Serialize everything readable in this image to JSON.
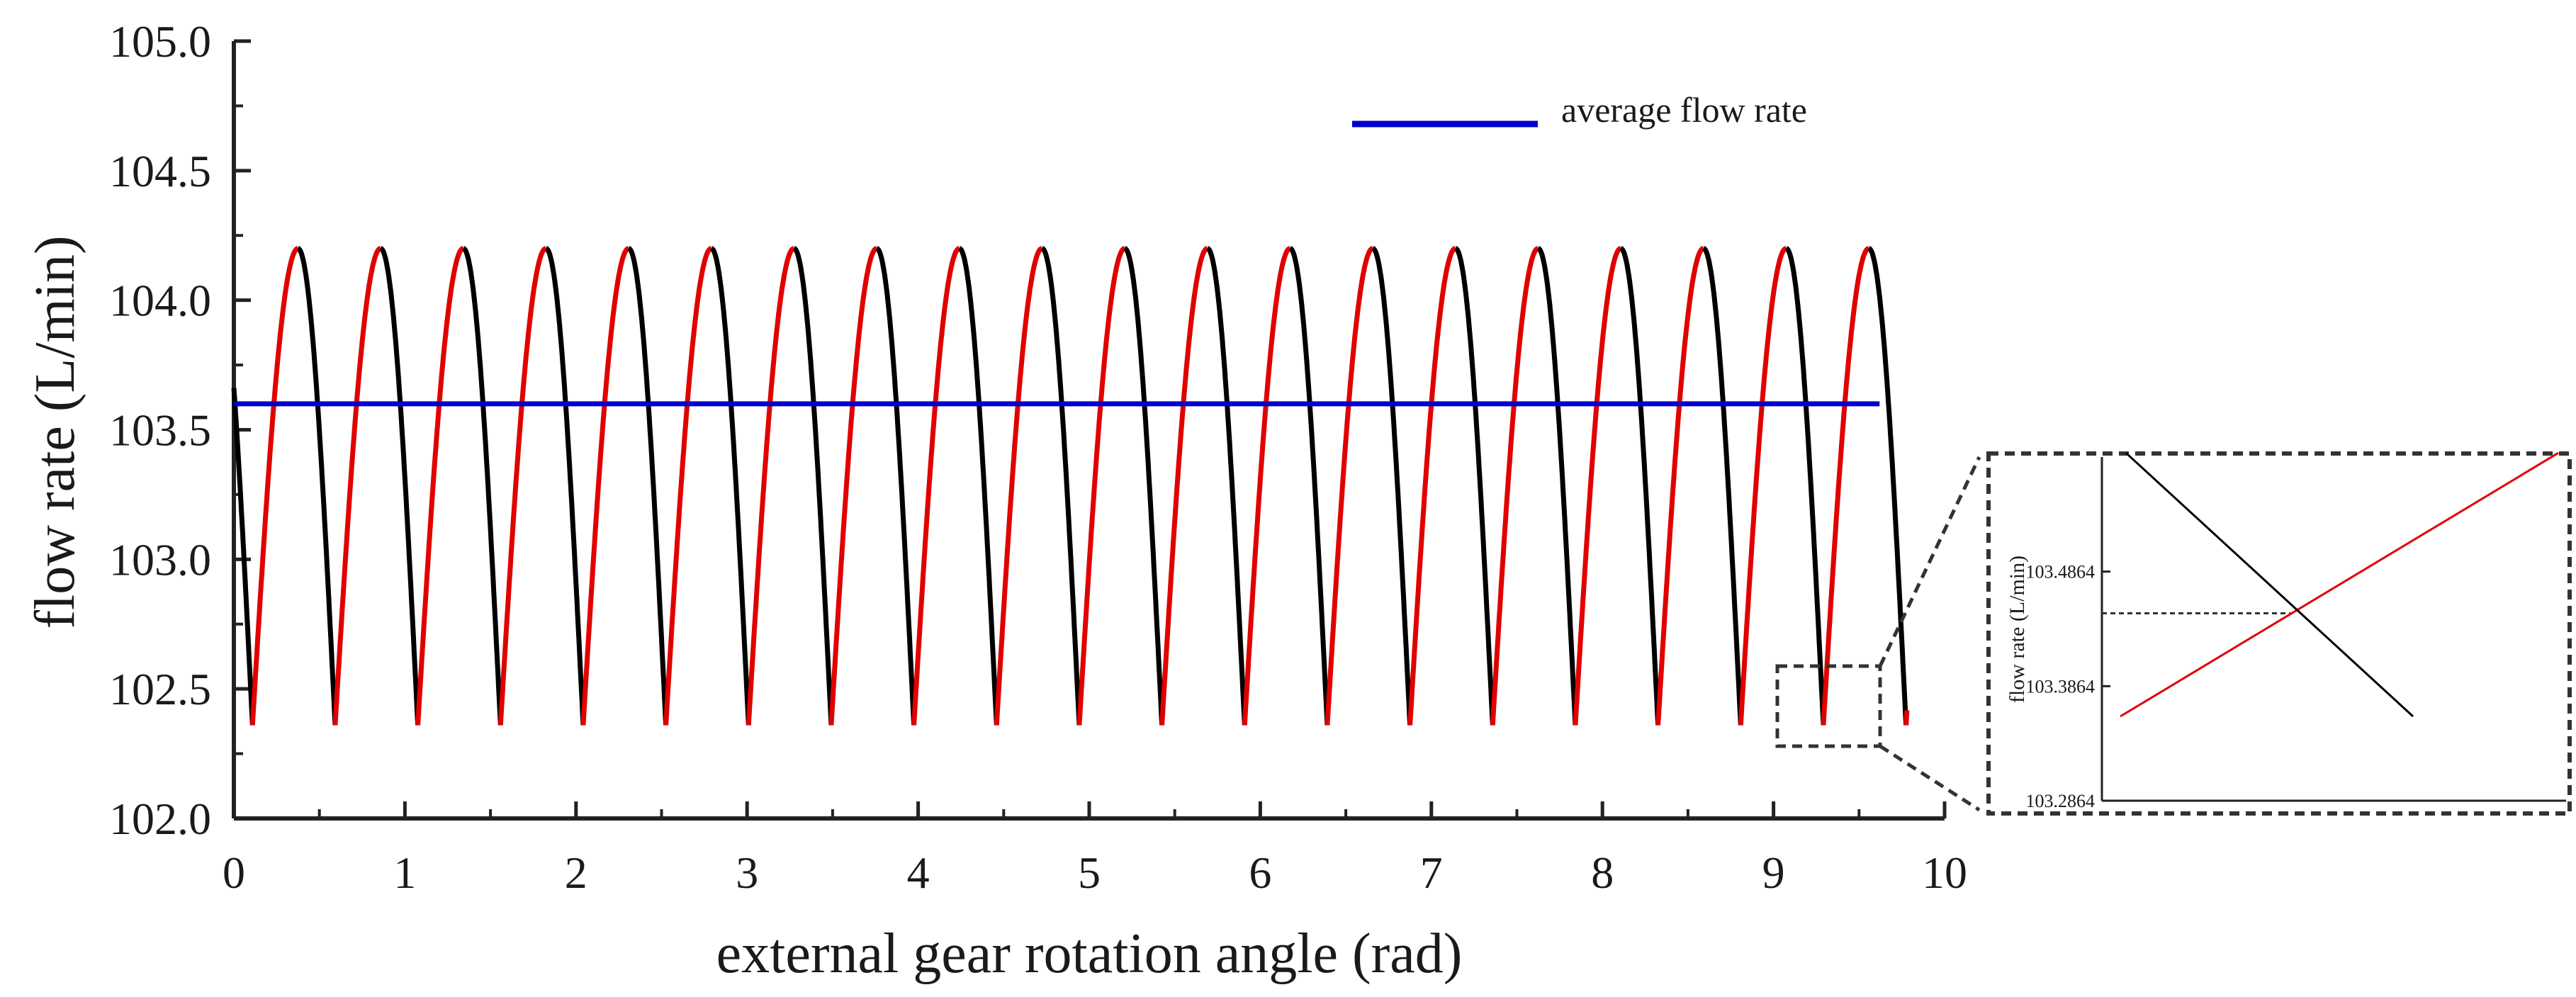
{
  "chart_data": {
    "type": "line",
    "xlabel": "external gear rotation angle (rad)",
    "ylabel": "flow rate (L/min)",
    "xlim": [
      0,
      10
    ],
    "ylim": [
      102.0,
      105.0
    ],
    "x_ticks": [
      "0",
      "1",
      "2",
      "3",
      "4",
      "5",
      "6",
      "7",
      "8",
      "9",
      "10"
    ],
    "y_ticks": [
      "102.0",
      "102.5",
      "103.0",
      "103.5",
      "104.0",
      "104.5",
      "105.0"
    ],
    "legend": {
      "position": "top-right",
      "entries": [
        {
          "label": "average flow rate",
          "color": "#0000cc"
        }
      ]
    },
    "pulsation": {
      "period_rad": 0.4833,
      "min_flow": 102.36,
      "max_flow": 104.2,
      "rise_fraction": 0.55,
      "x_start": 0,
      "x_end": 9.78,
      "cycles": 20
    },
    "series": [
      {
        "name": "rising segment",
        "color": "#e00000"
      },
      {
        "name": "falling segment",
        "color": "#000000"
      },
      {
        "name": "average flow rate",
        "color": "#0000cc",
        "x": [
          0,
          9.62
        ],
        "y": [
          103.6,
          103.6
        ]
      }
    ],
    "inset": {
      "ylabel": "flow rate (L/min)",
      "y_ticks": [
        "103.2864",
        "103.3864",
        "103.4864"
      ],
      "ylim": [
        103.2864,
        103.5864
      ],
      "intersection_value": 103.45,
      "red_line": {
        "y": [
          103.36,
          103.59
        ]
      },
      "black_line": {
        "y": [
          103.59,
          103.36
        ]
      }
    }
  }
}
